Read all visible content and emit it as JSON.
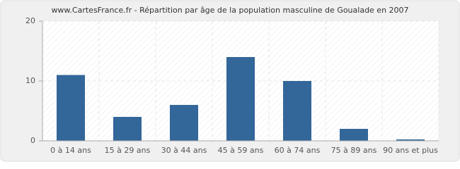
{
  "chart_data": {
    "type": "bar",
    "title": "www.CartesFrance.fr - Répartition par âge de la population masculine de Goualade en 2007",
    "categories": [
      "0 à 14 ans",
      "15 à 29 ans",
      "30 à 44 ans",
      "45 à 59 ans",
      "60 à 74 ans",
      "75 à 89 ans",
      "90 ans et plus"
    ],
    "values": [
      11,
      4,
      6,
      14,
      10,
      2,
      0
    ],
    "color": "#336699",
    "ylim": [
      0,
      20
    ],
    "yticks": [
      0,
      10,
      20
    ],
    "grid": true
  }
}
